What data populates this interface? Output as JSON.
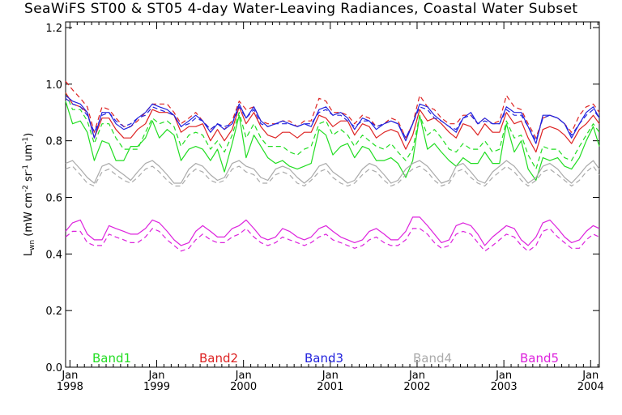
{
  "chart_data": {
    "type": "line",
    "title": "SeaWiFS ST00 & ST05 4-day Water-Leaving Radiances, Coastal Water Subset",
    "ylabel_main": "L",
    "ylabel_sub": "wn",
    "ylabel_rest": " (mW cm",
    "ylabel_exp1": "-2",
    "ylabel_mid": " sr",
    "ylabel_exp2": "-1",
    "ylabel_mid2": " um",
    "ylabel_exp3": "-1",
    "ylabel_end": ")",
    "xlim": [
      1997.95,
      2004.1
    ],
    "ylim": [
      0.0,
      1.22
    ],
    "x_ticks": [
      {
        "x": 1998.0,
        "month": "Jan",
        "year": "1998"
      },
      {
        "x": 1999.0,
        "month": "Jan",
        "year": "1999"
      },
      {
        "x": 2000.0,
        "month": "Jan",
        "year": "2000"
      },
      {
        "x": 2001.0,
        "month": "Jan",
        "year": "2001"
      },
      {
        "x": 2002.0,
        "month": "Jan",
        "year": "2002"
      },
      {
        "x": 2003.0,
        "month": "Jan",
        "year": "2003"
      },
      {
        "x": 2004.0,
        "month": "Jan",
        "year": "2004"
      }
    ],
    "y_ticks": [
      {
        "v": 0.0,
        "label": "0.0"
      },
      {
        "v": 0.2,
        "label": "0.2"
      },
      {
        "v": 0.4,
        "label": "0.4"
      },
      {
        "v": 0.6,
        "label": "0.6"
      },
      {
        "v": 0.8,
        "label": "0.8"
      },
      {
        "v": 1.0,
        "label": "1.0"
      },
      {
        "v": 1.2,
        "label": "1.2"
      }
    ],
    "x": [
      1997.95,
      1998.03,
      1998.12,
      1998.2,
      1998.28,
      1998.37,
      1998.45,
      1998.53,
      1998.62,
      1998.7,
      1998.78,
      1998.87,
      1998.95,
      1999.03,
      1999.12,
      1999.2,
      1999.28,
      1999.37,
      1999.45,
      1999.53,
      1999.62,
      1999.7,
      1999.78,
      1999.87,
      1999.95,
      2000.03,
      2000.12,
      2000.2,
      2000.28,
      2000.37,
      2000.45,
      2000.53,
      2000.62,
      2000.7,
      2000.78,
      2000.87,
      2000.95,
      2001.03,
      2001.12,
      2001.2,
      2001.28,
      2001.37,
      2001.45,
      2001.53,
      2001.62,
      2001.7,
      2001.78,
      2001.87,
      2001.95,
      2002.03,
      2002.12,
      2002.2,
      2002.28,
      2002.37,
      2002.45,
      2002.53,
      2002.62,
      2002.7,
      2002.78,
      2002.87,
      2002.95,
      2003.03,
      2003.12,
      2003.2,
      2003.28,
      2003.37,
      2003.45,
      2003.53,
      2003.62,
      2003.7,
      2003.78,
      2003.87,
      2003.95,
      2004.03,
      2004.1
    ],
    "series": [
      {
        "name": "Band1",
        "color": "#22dd22",
        "style": "solid",
        "values": [
          0.94,
          0.86,
          0.87,
          0.83,
          0.73,
          0.8,
          0.79,
          0.73,
          0.73,
          0.78,
          0.78,
          0.81,
          0.87,
          0.81,
          0.84,
          0.82,
          0.73,
          0.77,
          0.78,
          0.77,
          0.73,
          0.77,
          0.69,
          0.79,
          0.89,
          0.74,
          0.82,
          0.78,
          0.74,
          0.72,
          0.73,
          0.71,
          0.7,
          0.71,
          0.72,
          0.84,
          0.82,
          0.75,
          0.78,
          0.79,
          0.74,
          0.78,
          0.77,
          0.73,
          0.73,
          0.74,
          0.72,
          0.67,
          0.73,
          0.89,
          0.77,
          0.79,
          0.76,
          0.73,
          0.71,
          0.74,
          0.72,
          0.72,
          0.76,
          0.72,
          0.72,
          0.86,
          0.76,
          0.8,
          0.7,
          0.66,
          0.74,
          0.73,
          0.74,
          0.71,
          0.7,
          0.74,
          0.8,
          0.85,
          0.78
        ]
      },
      {
        "name": "",
        "color": "#22dd22",
        "style": "dash",
        "values": [
          0.97,
          0.91,
          0.91,
          0.87,
          0.79,
          0.86,
          0.86,
          0.81,
          0.77,
          0.77,
          0.77,
          0.83,
          0.88,
          0.86,
          0.87,
          0.85,
          0.78,
          0.82,
          0.83,
          0.82,
          0.77,
          0.8,
          0.76,
          0.82,
          0.9,
          0.81,
          0.86,
          0.81,
          0.78,
          0.78,
          0.78,
          0.76,
          0.75,
          0.77,
          0.78,
          0.86,
          0.87,
          0.82,
          0.84,
          0.82,
          0.78,
          0.82,
          0.8,
          0.78,
          0.77,
          0.79,
          0.76,
          0.73,
          0.77,
          0.89,
          0.82,
          0.84,
          0.81,
          0.77,
          0.76,
          0.79,
          0.77,
          0.77,
          0.8,
          0.76,
          0.77,
          0.87,
          0.81,
          0.82,
          0.75,
          0.7,
          0.78,
          0.77,
          0.77,
          0.74,
          0.73,
          0.78,
          0.82,
          0.86,
          0.83
        ]
      },
      {
        "name": "Band2",
        "color": "#dd2222",
        "style": "solid",
        "values": [
          0.97,
          0.93,
          0.92,
          0.9,
          0.81,
          0.88,
          0.88,
          0.84,
          0.81,
          0.81,
          0.84,
          0.86,
          0.91,
          0.9,
          0.9,
          0.89,
          0.83,
          0.85,
          0.85,
          0.86,
          0.8,
          0.84,
          0.8,
          0.84,
          0.92,
          0.86,
          0.9,
          0.85,
          0.82,
          0.81,
          0.83,
          0.83,
          0.81,
          0.83,
          0.83,
          0.89,
          0.88,
          0.85,
          0.87,
          0.87,
          0.82,
          0.86,
          0.85,
          0.81,
          0.83,
          0.84,
          0.83,
          0.77,
          0.82,
          0.91,
          0.87,
          0.88,
          0.86,
          0.83,
          0.81,
          0.86,
          0.85,
          0.82,
          0.86,
          0.83,
          0.83,
          0.9,
          0.86,
          0.87,
          0.81,
          0.76,
          0.84,
          0.85,
          0.84,
          0.82,
          0.79,
          0.84,
          0.86,
          0.89,
          0.86
        ]
      },
      {
        "name": "",
        "color": "#dd2222",
        "style": "dash",
        "values": [
          1.01,
          0.98,
          0.95,
          0.92,
          0.83,
          0.92,
          0.91,
          0.88,
          0.85,
          0.85,
          0.87,
          0.9,
          0.93,
          0.93,
          0.93,
          0.9,
          0.86,
          0.88,
          0.9,
          0.87,
          0.84,
          0.86,
          0.84,
          0.87,
          0.94,
          0.91,
          0.92,
          0.87,
          0.86,
          0.86,
          0.87,
          0.87,
          0.85,
          0.87,
          0.87,
          0.95,
          0.94,
          0.9,
          0.9,
          0.89,
          0.86,
          0.89,
          0.88,
          0.85,
          0.86,
          0.88,
          0.87,
          0.81,
          0.86,
          0.96,
          0.92,
          0.91,
          0.88,
          0.86,
          0.86,
          0.89,
          0.89,
          0.86,
          0.88,
          0.86,
          0.87,
          0.96,
          0.92,
          0.91,
          0.86,
          0.81,
          0.88,
          0.89,
          0.88,
          0.86,
          0.83,
          0.89,
          0.92,
          0.93,
          0.9
        ]
      },
      {
        "name": "Band3",
        "color": "#2222dd",
        "style": "solid",
        "values": [
          0.96,
          0.94,
          0.93,
          0.9,
          0.81,
          0.9,
          0.9,
          0.86,
          0.84,
          0.85,
          0.88,
          0.9,
          0.93,
          0.92,
          0.91,
          0.89,
          0.85,
          0.87,
          0.89,
          0.87,
          0.83,
          0.86,
          0.84,
          0.86,
          0.93,
          0.88,
          0.92,
          0.87,
          0.85,
          0.86,
          0.87,
          0.86,
          0.85,
          0.86,
          0.85,
          0.91,
          0.92,
          0.89,
          0.9,
          0.88,
          0.84,
          0.88,
          0.87,
          0.84,
          0.86,
          0.87,
          0.86,
          0.8,
          0.86,
          0.93,
          0.92,
          0.89,
          0.87,
          0.85,
          0.83,
          0.88,
          0.9,
          0.86,
          0.88,
          0.86,
          0.86,
          0.92,
          0.9,
          0.9,
          0.85,
          0.79,
          0.89,
          0.89,
          0.88,
          0.86,
          0.81,
          0.86,
          0.9,
          0.92,
          0.88
        ]
      },
      {
        "name": "",
        "color": "#2222dd",
        "style": "dash",
        "values": [
          0.95,
          0.93,
          0.92,
          0.89,
          0.83,
          0.89,
          0.9,
          0.87,
          0.85,
          0.86,
          0.88,
          0.89,
          0.92,
          0.91,
          0.9,
          0.89,
          0.85,
          0.86,
          0.88,
          0.87,
          0.84,
          0.86,
          0.85,
          0.86,
          0.92,
          0.88,
          0.91,
          0.86,
          0.85,
          0.86,
          0.86,
          0.86,
          0.85,
          0.86,
          0.86,
          0.9,
          0.91,
          0.89,
          0.89,
          0.87,
          0.85,
          0.87,
          0.87,
          0.85,
          0.86,
          0.87,
          0.86,
          0.81,
          0.86,
          0.92,
          0.91,
          0.88,
          0.87,
          0.85,
          0.84,
          0.88,
          0.89,
          0.86,
          0.87,
          0.86,
          0.86,
          0.91,
          0.89,
          0.89,
          0.85,
          0.8,
          0.88,
          0.89,
          0.88,
          0.86,
          0.82,
          0.86,
          0.89,
          0.91,
          0.88
        ]
      },
      {
        "name": "Band4",
        "color": "#aaaaaa",
        "style": "solid",
        "values": [
          0.72,
          0.73,
          0.7,
          0.67,
          0.65,
          0.71,
          0.72,
          0.7,
          0.68,
          0.66,
          0.69,
          0.72,
          0.73,
          0.71,
          0.68,
          0.65,
          0.65,
          0.7,
          0.72,
          0.71,
          0.68,
          0.66,
          0.67,
          0.72,
          0.73,
          0.71,
          0.7,
          0.67,
          0.66,
          0.7,
          0.71,
          0.7,
          0.67,
          0.65,
          0.67,
          0.71,
          0.72,
          0.69,
          0.67,
          0.65,
          0.66,
          0.7,
          0.72,
          0.71,
          0.68,
          0.65,
          0.66,
          0.7,
          0.72,
          0.73,
          0.71,
          0.68,
          0.65,
          0.66,
          0.71,
          0.72,
          0.69,
          0.66,
          0.65,
          0.69,
          0.71,
          0.73,
          0.71,
          0.68,
          0.65,
          0.67,
          0.71,
          0.72,
          0.7,
          0.67,
          0.65,
          0.68,
          0.71,
          0.73,
          0.7
        ]
      },
      {
        "name": "",
        "color": "#aaaaaa",
        "style": "dash",
        "values": [
          0.7,
          0.71,
          0.68,
          0.65,
          0.64,
          0.69,
          0.7,
          0.68,
          0.66,
          0.65,
          0.67,
          0.7,
          0.71,
          0.69,
          0.66,
          0.64,
          0.64,
          0.68,
          0.7,
          0.69,
          0.66,
          0.65,
          0.66,
          0.7,
          0.71,
          0.69,
          0.68,
          0.65,
          0.65,
          0.68,
          0.69,
          0.68,
          0.65,
          0.64,
          0.66,
          0.69,
          0.7,
          0.67,
          0.65,
          0.64,
          0.65,
          0.68,
          0.7,
          0.69,
          0.66,
          0.64,
          0.65,
          0.68,
          0.7,
          0.71,
          0.69,
          0.66,
          0.64,
          0.65,
          0.69,
          0.7,
          0.67,
          0.65,
          0.64,
          0.67,
          0.69,
          0.71,
          0.69,
          0.66,
          0.64,
          0.66,
          0.69,
          0.7,
          0.68,
          0.66,
          0.64,
          0.66,
          0.69,
          0.71,
          0.68
        ]
      },
      {
        "name": "Band5",
        "color": "#dd22dd",
        "style": "solid",
        "values": [
          0.48,
          0.51,
          0.52,
          0.47,
          0.45,
          0.45,
          0.5,
          0.49,
          0.48,
          0.47,
          0.47,
          0.49,
          0.52,
          0.51,
          0.48,
          0.45,
          0.43,
          0.44,
          0.48,
          0.5,
          0.48,
          0.46,
          0.46,
          0.49,
          0.5,
          0.52,
          0.49,
          0.46,
          0.45,
          0.46,
          0.49,
          0.48,
          0.46,
          0.45,
          0.46,
          0.49,
          0.5,
          0.48,
          0.46,
          0.45,
          0.44,
          0.45,
          0.48,
          0.49,
          0.47,
          0.45,
          0.45,
          0.48,
          0.53,
          0.53,
          0.5,
          0.47,
          0.44,
          0.45,
          0.5,
          0.51,
          0.5,
          0.47,
          0.43,
          0.46,
          0.48,
          0.5,
          0.49,
          0.45,
          0.43,
          0.46,
          0.51,
          0.52,
          0.49,
          0.46,
          0.44,
          0.45,
          0.48,
          0.5,
          0.49
        ]
      },
      {
        "name": "",
        "color": "#dd22dd",
        "style": "dash",
        "values": [
          0.46,
          0.48,
          0.48,
          0.44,
          0.43,
          0.43,
          0.47,
          0.46,
          0.45,
          0.44,
          0.44,
          0.46,
          0.49,
          0.48,
          0.45,
          0.43,
          0.41,
          0.42,
          0.45,
          0.47,
          0.45,
          0.44,
          0.44,
          0.46,
          0.47,
          0.49,
          0.46,
          0.44,
          0.43,
          0.44,
          0.46,
          0.45,
          0.44,
          0.43,
          0.44,
          0.46,
          0.47,
          0.45,
          0.44,
          0.43,
          0.42,
          0.43,
          0.45,
          0.46,
          0.44,
          0.43,
          0.43,
          0.45,
          0.49,
          0.49,
          0.47,
          0.44,
          0.42,
          0.43,
          0.47,
          0.48,
          0.47,
          0.44,
          0.41,
          0.43,
          0.45,
          0.47,
          0.46,
          0.43,
          0.41,
          0.43,
          0.48,
          0.49,
          0.46,
          0.44,
          0.42,
          0.42,
          0.45,
          0.47,
          0.46
        ]
      }
    ],
    "legend": [
      {
        "label": "Band1",
        "color": "#22dd22"
      },
      {
        "label": "Band2",
        "color": "#dd2222"
      },
      {
        "label": "Band3",
        "color": "#2222dd"
      },
      {
        "label": "Band4",
        "color": "#aaaaaa"
      },
      {
        "label": "Band5",
        "color": "#dd22dd"
      }
    ],
    "legend_placement": "bottom-inside",
    "grid": false
  }
}
